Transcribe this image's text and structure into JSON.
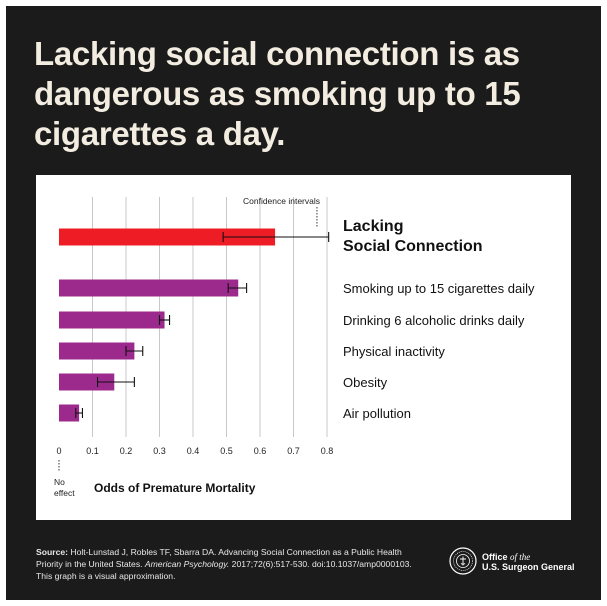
{
  "headline": "Lacking social connection is as dangerous as smoking up to 15 cigarettes a day.",
  "chart_data": {
    "type": "bar",
    "orientation": "horizontal",
    "categories": [
      "Lacking Social Connection",
      "Smoking up to 15 cigarettes daily",
      "Drinking 6 alcoholic drinks daily",
      "Physical inactivity",
      "Obesity",
      "Air pollution"
    ],
    "values": [
      0.645,
      0.535,
      0.315,
      0.225,
      0.165,
      0.06
    ],
    "ci_low": [
      0.49,
      0.505,
      0.3,
      0.2,
      0.115,
      0.05
    ],
    "ci_high": [
      0.805,
      0.56,
      0.33,
      0.25,
      0.225,
      0.07
    ],
    "highlight_index": 0,
    "xlabel": "Odds of Premature Mortality",
    "xlim": [
      0,
      0.8
    ],
    "ticks": [
      "0",
      "0.1",
      "0.2",
      "0.3",
      "0.4",
      "0.5",
      "0.6",
      "0.7",
      "0.8"
    ],
    "annotation_ci": "Confidence intervals",
    "annotation_zero": [
      "No",
      "effect"
    ],
    "grid": true,
    "colors": {
      "highlight": "#ee1c25",
      "bars": "#9c2a8c",
      "grid": "#c8c8c8"
    }
  },
  "footer": {
    "source_label": "Source:",
    "source_text_1": " Holt-Lunstad J, Robles TF, Sbarra DA. Advancing Social Connection as a Public Health Priority in the United States. ",
    "source_journal": "American Psychology.",
    "source_text_2": " 2017;72(6):517-530. doi:10.1037/amp0000103. This graph is a visual approximation.",
    "office_1": "Office ",
    "office_of_the": "of the",
    "office_2": "U.S. Surgeon General"
  }
}
